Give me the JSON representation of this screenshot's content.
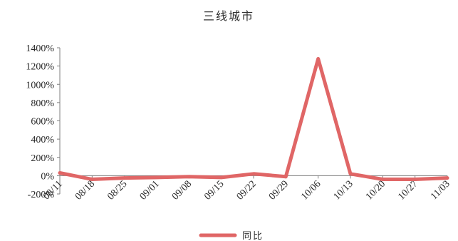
{
  "chart_data": {
    "type": "line",
    "title": "三线城市",
    "categories": [
      "08/11",
      "08/18",
      "08/25",
      "09/01",
      "09/08",
      "09/15",
      "09/22",
      "09/29",
      "10/06",
      "10/13",
      "10/20",
      "10/27",
      "11/03"
    ],
    "series": [
      {
        "name": "同比",
        "color": "#e06666",
        "values": [
          30,
          -40,
          -25,
          -20,
          -10,
          -20,
          20,
          -10,
          1280,
          20,
          -40,
          -40,
          -25
        ]
      }
    ],
    "ylim": [
      -200,
      1400
    ],
    "yticks": [
      -200,
      0,
      200,
      400,
      600,
      800,
      1000,
      1200,
      1400
    ],
    "ytick_format": "percent",
    "xlabel": "",
    "ylabel": "",
    "grid": false,
    "legend_position": "bottom"
  }
}
